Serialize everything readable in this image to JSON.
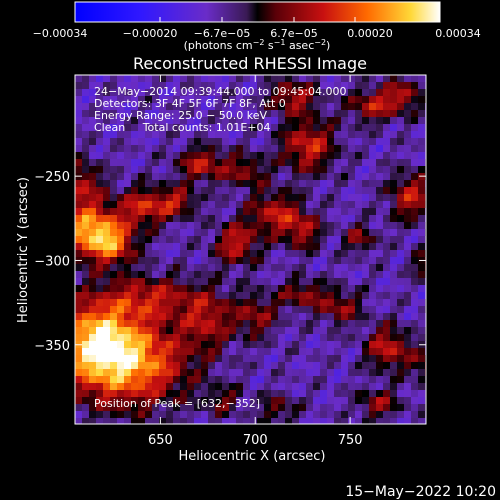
{
  "chart_data": {
    "type": "heatmap",
    "title": "Reconstructed RHESSI Image",
    "xlabel": "Heliocentric X (arcsec)",
    "ylabel": "Heliocentric Y (arcsec)",
    "xlim": [
      605,
      790
    ],
    "ylim": [
      -397,
      -190
    ],
    "x_ticks": [
      650,
      700,
      750
    ],
    "x_tick_labels": [
      "650",
      "700",
      "750"
    ],
    "y_ticks": [
      -250,
      -300,
      -350
    ],
    "y_tick_labels": [
      "−250",
      "−300",
      "−350"
    ],
    "colorbar": {
      "range": [
        -0.00034,
        0.00034
      ],
      "ticks": [
        -0.00034,
        -0.0002,
        -6.7e-05,
        6.7e-05,
        0.0002,
        0.00034
      ],
      "tick_labels": [
        "−0.00034",
        "−0.00020",
        "−6.7e−05",
        "6.7e−05",
        "0.00020",
        "0.00034"
      ],
      "unit_parts": [
        "(photons cm",
        "−2",
        " s",
        "−1",
        " asec",
        "−2",
        ")"
      ]
    },
    "annotations": [
      "24−May−2014 09:39:44.000 to 09:45:04.000",
      "Detectors: 3F 4F 5F 6F 7F 8F, Att 0",
      "Energy Range: 25.0 − 50.0 keV",
      "Clean     Total counts: 1.01E+04",
      "Position of Peak = [632,−352]"
    ],
    "peak": {
      "x": 632,
      "y": -352
    },
    "intensity_sources": [
      {
        "x": 632,
        "y": -360,
        "sx": 22,
        "sy": 18,
        "amp": 0.00034
      },
      {
        "x": 615,
        "y": -345,
        "sx": 14,
        "sy": 16,
        "amp": 0.00024
      },
      {
        "x": 612,
        "y": -282,
        "sx": 11,
        "sy": 11,
        "amp": 0.0003
      },
      {
        "x": 625,
        "y": -290,
        "sx": 9,
        "sy": 9,
        "amp": 0.00022
      },
      {
        "x": 642,
        "y": -268,
        "sx": 10,
        "sy": 8,
        "amp": 0.00021
      },
      {
        "x": 608,
        "y": -255,
        "sx": 8,
        "sy": 10,
        "amp": 0.00017
      },
      {
        "x": 672,
        "y": -243,
        "sx": 9,
        "sy": 7,
        "amp": 0.00019
      },
      {
        "x": 660,
        "y": -265,
        "sx": 7,
        "sy": 6,
        "amp": 0.00015
      },
      {
        "x": 645,
        "y": -322,
        "sx": 18,
        "sy": 9,
        "amp": 0.00017
      },
      {
        "x": 675,
        "y": -335,
        "sx": 9,
        "sy": 12,
        "amp": 0.00016
      },
      {
        "x": 700,
        "y": -333,
        "sx": 8,
        "sy": 9,
        "amp": 0.00015
      },
      {
        "x": 690,
        "y": -290,
        "sx": 8,
        "sy": 9,
        "amp": 0.0002
      },
      {
        "x": 710,
        "y": -272,
        "sx": 9,
        "sy": 9,
        "amp": 0.00019
      },
      {
        "x": 725,
        "y": -282,
        "sx": 7,
        "sy": 8,
        "amp": 0.00017
      },
      {
        "x": 695,
        "y": -247,
        "sx": 8,
        "sy": 7,
        "amp": 0.00014
      },
      {
        "x": 728,
        "y": -232,
        "sx": 10,
        "sy": 11,
        "amp": 0.00021
      },
      {
        "x": 720,
        "y": -203,
        "sx": 9,
        "sy": 7,
        "amp": 0.00018
      },
      {
        "x": 762,
        "y": -208,
        "sx": 9,
        "sy": 7,
        "amp": 0.00018
      },
      {
        "x": 778,
        "y": -202,
        "sx": 7,
        "sy": 7,
        "amp": 0.00016
      },
      {
        "x": 782,
        "y": -262,
        "sx": 8,
        "sy": 10,
        "amp": 0.00019
      },
      {
        "x": 755,
        "y": -287,
        "sx": 6,
        "sy": 6,
        "amp": 0.00014
      },
      {
        "x": 790,
        "y": -302,
        "sx": 6,
        "sy": 6,
        "amp": 0.00012
      },
      {
        "x": 725,
        "y": -320,
        "sx": 9,
        "sy": 6,
        "amp": 0.00015
      },
      {
        "x": 745,
        "y": -328,
        "sx": 8,
        "sy": 7,
        "amp": 0.00015
      },
      {
        "x": 770,
        "y": -352,
        "sx": 8,
        "sy": 9,
        "amp": 0.0002
      },
      {
        "x": 790,
        "y": -362,
        "sx": 6,
        "sy": 7,
        "amp": 0.00013
      },
      {
        "x": 765,
        "y": -385,
        "sx": 8,
        "sy": 6,
        "amp": 0.00015
      },
      {
        "x": 712,
        "y": -388,
        "sx": 7,
        "sy": 6,
        "amp": 0.00012
      },
      {
        "x": 683,
        "y": -383,
        "sx": 7,
        "sy": 6,
        "amp": 0.00011
      }
    ]
  },
  "footer": {
    "timestamp": "15−May−2022 10:20"
  }
}
